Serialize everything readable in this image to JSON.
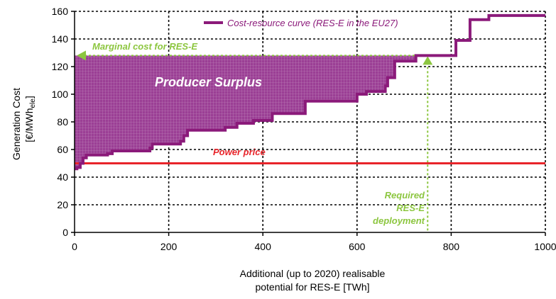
{
  "chart_data": {
    "type": "line",
    "ylabel_line1": "Generation Cost",
    "ylabel_line2": "[€/MWh",
    "ylabel_sub": "ele",
    "ylabel_close": "]",
    "xlabel_line1": "Additional (up to 2020) realisable",
    "xlabel_line2": "potential for RES-E [TWh]",
    "xlim": [
      0,
      1000
    ],
    "ylim": [
      0,
      160
    ],
    "x_ticks": [
      0,
      200,
      400,
      600,
      800,
      1000
    ],
    "y_ticks": [
      0,
      20,
      40,
      60,
      80,
      100,
      120,
      140,
      160
    ],
    "grid": true,
    "legend_position": "top-right",
    "series": [
      {
        "name": "Cost-resource curve (RES-E in the EU27)",
        "color": "#8b1a7a",
        "x": [
          0,
          5,
          5,
          12,
          12,
          18,
          18,
          25,
          25,
          70,
          70,
          80,
          80,
          160,
          160,
          165,
          165,
          225,
          225,
          232,
          232,
          240,
          240,
          320,
          320,
          345,
          345,
          380,
          380,
          420,
          420,
          490,
          490,
          600,
          600,
          620,
          620,
          660,
          660,
          665,
          665,
          680,
          680,
          725,
          725,
          740,
          740,
          810,
          810,
          825,
          825,
          840,
          840,
          880,
          880,
          1000
        ],
        "y": [
          46,
          46,
          47,
          47,
          50,
          50,
          54,
          54,
          56,
          56,
          57,
          57,
          59,
          59,
          61,
          61,
          64,
          64,
          66,
          66,
          70,
          70,
          74,
          74,
          76,
          76,
          79,
          79,
          81,
          81,
          86,
          86,
          95,
          95,
          100,
          100,
          102,
          102,
          106,
          106,
          112,
          112,
          124,
          124,
          128,
          128,
          128,
          128,
          139,
          139,
          139,
          139,
          154,
          154,
          157,
          157
        ]
      },
      {
        "name": "Power price",
        "color": "#e8242a",
        "x": [
          0,
          1000
        ],
        "y": [
          50,
          50
        ]
      }
    ],
    "marginal_cost": 128,
    "required_deployment": 750,
    "annotations": {
      "marginal_cost_label": "Marginal cost for RES-E",
      "producer_surplus_label": "Producer Surplus",
      "power_price_label": "Power price",
      "required_line1": "Required",
      "required_line2": "RES-E",
      "required_line3": "deployment"
    },
    "colors": {
      "curve": "#8b1a7a",
      "surplus_fill": "#9b3f95",
      "power_price": "#e8242a",
      "annotation_green": "#8cc63f"
    }
  }
}
